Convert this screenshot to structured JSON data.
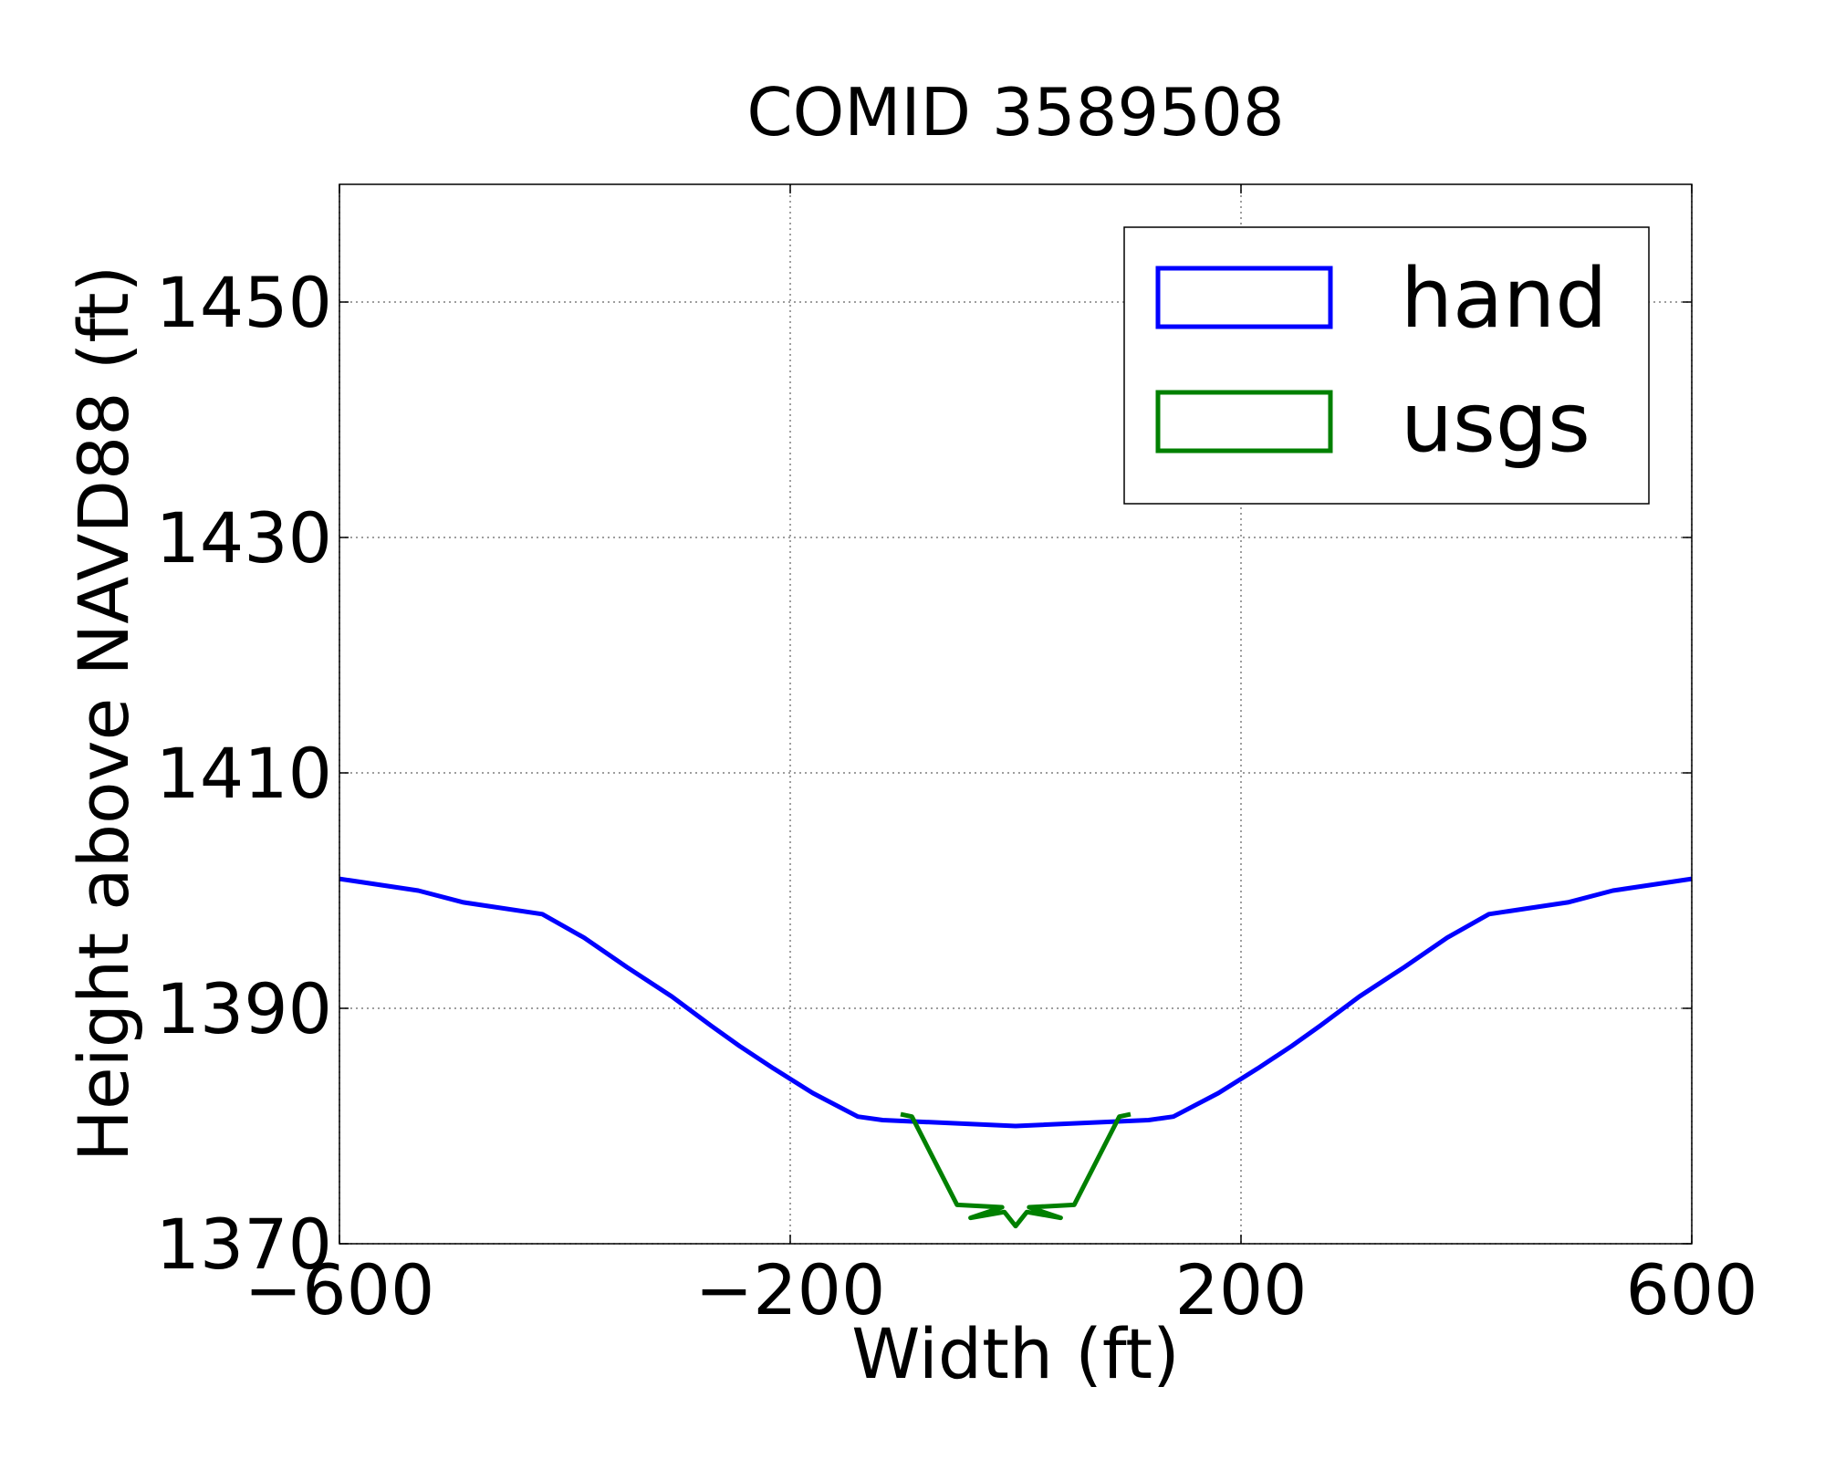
{
  "chart_data": {
    "type": "line",
    "title": "COMID 3589508",
    "xlabel": "Width (ft)",
    "ylabel": "Height above NAVD88 (ft)",
    "xlim": [
      -600,
      600
    ],
    "ylim": [
      1370,
      1460
    ],
    "xticks": [
      -600,
      -200,
      200,
      600
    ],
    "xtick_labels": [
      "−600",
      "−200",
      "200",
      "600"
    ],
    "yticks": [
      1370,
      1390,
      1410,
      1430,
      1450
    ],
    "ytick_labels": [
      "1370",
      "1390",
      "1410",
      "1430",
      "1450"
    ],
    "grid": true,
    "legend_position": "top-right",
    "series": [
      {
        "name": "hand",
        "color": "#0000ff",
        "x": [
          -600,
          -530,
          -490,
          -420,
          -383,
          -345,
          -305,
          -270,
          -245,
          -215,
          -180,
          -140,
          -118,
          0,
          118,
          140,
          180,
          215,
          245,
          270,
          305,
          345,
          383,
          420,
          490,
          530,
          600
        ],
        "y": [
          1401,
          1400,
          1399,
          1398,
          1396,
          1393.5,
          1391,
          1388.5,
          1386.8,
          1384.9,
          1382.8,
          1380.8,
          1380.5,
          1380,
          1380.5,
          1380.8,
          1382.8,
          1384.9,
          1386.8,
          1388.5,
          1391,
          1393.5,
          1396,
          1398,
          1399,
          1400,
          1401
        ]
      },
      {
        "name": "usgs",
        "color": "#008000",
        "x": [
          -102,
          -92,
          -52,
          -12,
          -40,
          -10,
          0,
          10,
          40,
          12,
          52,
          92,
          102
        ],
        "y": [
          1381,
          1380.8,
          1373.3,
          1373.1,
          1372.2,
          1372.7,
          1371.5,
          1372.7,
          1372.2,
          1373.1,
          1373.3,
          1380.8,
          1381
        ]
      }
    ]
  }
}
